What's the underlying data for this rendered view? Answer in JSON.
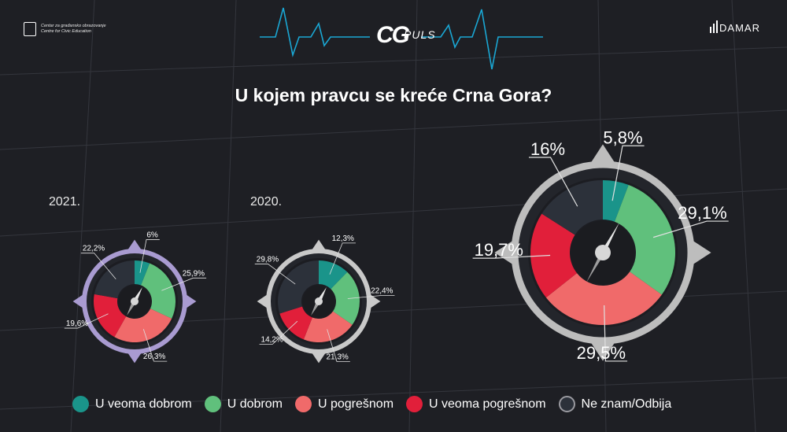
{
  "header": {
    "left_logo": {
      "line1": "Centar za građansko obrazovanje",
      "line2": "Centre for Civic Education"
    },
    "center_logo": {
      "brand": "CG",
      "sub": "PULS"
    },
    "right_logo": {
      "word": "DAMAR"
    }
  },
  "title": "U kojem pravcu se kreće Crna Gora?",
  "colors": {
    "U veoma dobrom": "#1a948a",
    "U dobrom": "#60c07c",
    "U pogrešnom": "#f06a6a",
    "U veoma pogrešnom": "#e11f3a",
    "Ne znam/Odbija": "#2c313a",
    "ring_2021": "#a99bd1",
    "ring_2020": "#c9c9c9",
    "ring_current": "#bdbdbd",
    "accent_line": "#1aa7d4"
  },
  "legend": [
    {
      "label": "U veoma dobrom",
      "icon": "teal-dot"
    },
    {
      "label": "U dobrom",
      "icon": "green-dot"
    },
    {
      "label": "U pogrešnom",
      "icon": "salmon-dot"
    },
    {
      "label": "U veoma pogrešnom",
      "icon": "red-dot"
    },
    {
      "label": "Ne znam/Odbija",
      "icon": "dark-dot"
    }
  ],
  "chart_data": [
    {
      "type": "pie",
      "title": "2021.",
      "categories": [
        "U veoma dobrom",
        "U dobrom",
        "U pogrešnom",
        "U veoma pogrešnom",
        "Ne znam/Odbija"
      ],
      "values": [
        6,
        25.9,
        26.3,
        19.6,
        22.2
      ],
      "labels": [
        "6%",
        "25,9%",
        "26,3%",
        "19,6%",
        "22,2%"
      ]
    },
    {
      "type": "pie",
      "title": "2020.",
      "categories": [
        "U veoma dobrom",
        "U dobrom",
        "U pogrešnom",
        "U veoma pogrešnom",
        "Ne znam/Odbija"
      ],
      "values": [
        12.3,
        22.4,
        21.3,
        14.2,
        29.8
      ],
      "labels": [
        "12,3%",
        "22,4%",
        "21,3%",
        "14,2%",
        "29,8%"
      ]
    },
    {
      "type": "pie",
      "title": "",
      "categories": [
        "U veoma dobrom",
        "U dobrom",
        "U pogrešnom",
        "U veoma pogrešnom",
        "Ne znam/Odbija"
      ],
      "values": [
        5.8,
        29.1,
        29.5,
        19.7,
        16
      ],
      "labels": [
        "5,8%",
        "29,1%",
        "29,5%",
        "19,7%",
        "16%"
      ]
    }
  ]
}
